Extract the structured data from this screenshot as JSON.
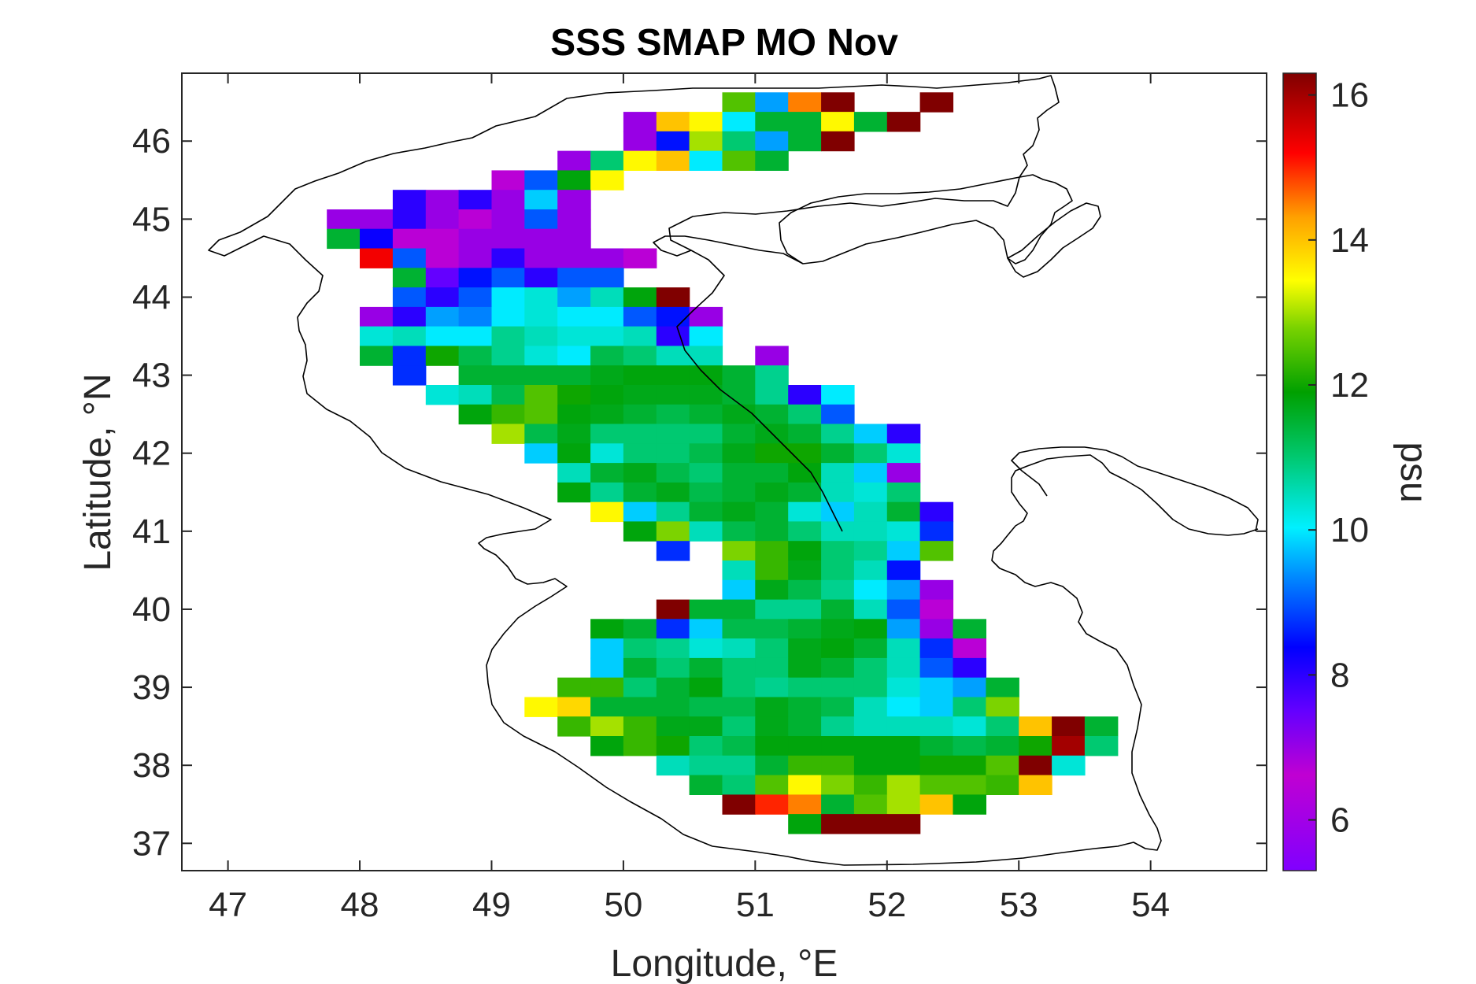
{
  "chart_data": {
    "type": "heatmap",
    "title": "SSS SMAP MO Nov",
    "xlabel": "Longitude, °E",
    "ylabel": "Latitude, °N",
    "colorbar_label": "psu",
    "xlim": [
      46.65,
      54.88
    ],
    "ylim": [
      36.65,
      46.87
    ],
    "xticks": [
      47,
      48,
      49,
      50,
      51,
      52,
      53,
      54
    ],
    "yticks": [
      37,
      38,
      39,
      40,
      41,
      42,
      43,
      44,
      45,
      46
    ],
    "clim": [
      5.3,
      16.3
    ],
    "cticks": [
      6,
      8,
      10,
      12,
      14,
      16
    ],
    "colormap": "hsv-jet",
    "cell_size_deg": [
      0.25,
      0.25
    ],
    "land_color": "#ffffff",
    "coastline_color": "#000000",
    "grid": false,
    "rows": [
      {
        "lat": 46.5,
        "lon_start": 50.875,
        "values": [
          12.5,
          9.5,
          14.5,
          16.3,
          null,
          null,
          16.3
        ]
      },
      {
        "lat": 46.25,
        "lon_start": 50.125,
        "values": [
          7.0,
          14.0,
          13.5,
          10.0,
          11.5,
          11.5,
          13.5,
          11.5,
          16.3
        ]
      },
      {
        "lat": 46.0,
        "lon_start": 50.125,
        "values": [
          7.0,
          8.5,
          13.0,
          11.0,
          9.5,
          11.5,
          16.3
        ]
      },
      {
        "lat": 45.75,
        "lon_start": 49.625,
        "values": [
          7.0,
          11.0,
          13.5,
          14.0,
          10.0,
          12.5,
          11.5
        ]
      },
      {
        "lat": 45.5,
        "lon_start": 49.125,
        "values": [
          6.5,
          9.0,
          11.8,
          13.5
        ]
      },
      {
        "lat": 45.25,
        "lon_start": 48.375,
        "values": [
          8.0,
          7.0,
          8.0,
          7.0,
          9.8,
          7.0
        ]
      },
      {
        "lat": 45.0,
        "lon_start": 47.875,
        "values": [
          7.0,
          7.0,
          8.0,
          7.0,
          6.5,
          7.0,
          9.0,
          7.0
        ]
      },
      {
        "lat": 44.75,
        "lon_start": 47.875,
        "values": [
          11.5,
          8.3,
          6.5,
          6.5,
          7.0,
          7.0,
          7.0,
          7.0
        ]
      },
      {
        "lat": 44.5,
        "lon_start": 48.125,
        "values": [
          15.3,
          9.0,
          6.5,
          7.0,
          8.0,
          7.0,
          7.0,
          7.0,
          6.5
        ]
      },
      {
        "lat": 44.25,
        "lon_start": 48.375,
        "values": [
          11.5,
          7.5,
          8.5,
          9.0,
          8.0,
          9.0,
          9.0
        ]
      },
      {
        "lat": 44.0,
        "lon_start": 48.375,
        "values": [
          9.0,
          8.0,
          9.0,
          10.0,
          10.3,
          9.5,
          10.5,
          11.8,
          16.3
        ]
      },
      {
        "lat": 43.75,
        "lon_start": 48.125,
        "values": [
          7.0,
          8.0,
          9.5,
          9.3,
          10.0,
          10.3,
          10.0,
          10.0,
          9.0,
          8.5,
          7.0
        ]
      },
      {
        "lat": 43.5,
        "lon_start": 48.125,
        "values": [
          10.3,
          10.5,
          10.0,
          10.0,
          10.8,
          10.5,
          10.3,
          10.3,
          10.5,
          8.0,
          10.0
        ]
      },
      {
        "lat": 43.25,
        "lon_start": 48.125,
        "values": [
          11.5,
          8.7,
          12.0,
          11.3,
          10.8,
          10.3,
          10.0,
          11.3,
          11.0,
          10.5,
          10.5,
          null,
          7.0
        ]
      },
      {
        "lat": 43.0,
        "lon_start": 48.375,
        "values": [
          8.7,
          null,
          11.5,
          11.5,
          11.5,
          11.5,
          11.7,
          11.8,
          11.8,
          11.8,
          11.5,
          10.8
        ]
      },
      {
        "lat": 42.75,
        "lon_start": 48.625,
        "values": [
          10.3,
          10.5,
          11.3,
          12.5,
          12.0,
          11.8,
          11.7,
          11.7,
          11.7,
          11.5,
          10.8,
          8.0,
          10.0
        ]
      },
      {
        "lat": 42.5,
        "lon_start": 48.875,
        "values": [
          11.8,
          12.3,
          12.5,
          11.8,
          11.7,
          11.5,
          11.3,
          11.5,
          11.7,
          11.5,
          11.0,
          9.0
        ]
      },
      {
        "lat": 42.25,
        "lon_start": 49.125,
        "values": [
          13.0,
          11.3,
          11.7,
          11.0,
          11.0,
          11.0,
          11.0,
          11.5,
          11.7,
          11.5,
          10.8,
          9.8,
          8.0
        ]
      },
      {
        "lat": 42.0,
        "lon_start": 49.375,
        "values": [
          9.8,
          11.8,
          10.3,
          11.0,
          11.0,
          11.3,
          11.7,
          12.0,
          12.0,
          11.5,
          11.0,
          10.3
        ]
      },
      {
        "lat": 41.75,
        "lon_start": 49.625,
        "values": [
          10.5,
          11.5,
          11.7,
          11.3,
          11.0,
          11.5,
          11.5,
          11.8,
          10.5,
          9.8,
          7.0
        ]
      },
      {
        "lat": 41.5,
        "lon_start": 49.625,
        "values": [
          11.8,
          10.8,
          11.5,
          11.7,
          11.3,
          11.5,
          11.7,
          11.5,
          10.5,
          10.3,
          11.0
        ]
      },
      {
        "lat": 41.25,
        "lon_start": 49.875,
        "values": [
          13.5,
          9.8,
          10.8,
          11.5,
          11.7,
          11.5,
          10.3,
          9.8,
          10.5,
          11.5,
          8.0
        ]
      },
      {
        "lat": 41.0,
        "lon_start": 50.125,
        "values": [
          11.8,
          12.8,
          10.5,
          11.3,
          11.5,
          11.0,
          10.5,
          10.5,
          10.3,
          8.7
        ]
      },
      {
        "lat": 40.75,
        "lon_start": 50.375,
        "values": [
          8.7,
          null,
          12.8,
          12.3,
          11.8,
          11.0,
          10.8,
          9.8,
          12.5
        ]
      },
      {
        "lat": 40.5,
        "lon_start": 50.875,
        "values": [
          10.5,
          12.3,
          11.7,
          11.0,
          10.5,
          8.5
        ]
      },
      {
        "lat": 40.25,
        "lon_start": 50.875,
        "values": [
          9.8,
          11.7,
          11.3,
          10.8,
          10.0,
          9.5,
          7.0
        ]
      },
      {
        "lat": 40.0,
        "lon_start": 50.375,
        "values": [
          16.3,
          11.5,
          11.5,
          10.8,
          10.8,
          11.5,
          10.5,
          9.0,
          6.5
        ]
      },
      {
        "lat": 39.75,
        "lon_start": 49.875,
        "values": [
          11.8,
          11.5,
          8.7,
          9.8,
          11.3,
          11.3,
          11.5,
          11.7,
          11.8,
          9.5,
          7.0,
          11.5
        ]
      },
      {
        "lat": 39.5,
        "lon_start": 49.875,
        "values": [
          9.8,
          11.0,
          10.8,
          10.3,
          10.5,
          11.0,
          11.7,
          11.8,
          11.5,
          10.5,
          8.7,
          6.5
        ]
      },
      {
        "lat": 39.25,
        "lon_start": 49.875,
        "values": [
          9.8,
          11.5,
          11.0,
          11.5,
          11.0,
          11.0,
          11.7,
          11.5,
          11.0,
          10.5,
          9.0,
          8.0
        ]
      },
      {
        "lat": 39.0,
        "lon_start": 49.625,
        "values": [
          12.3,
          12.3,
          11.0,
          11.5,
          11.8,
          11.0,
          10.8,
          11.0,
          11.0,
          11.0,
          10.3,
          9.8,
          9.5,
          11.5
        ]
      },
      {
        "lat": 38.75,
        "lon_start": 49.375,
        "values": [
          13.5,
          13.8,
          11.5,
          11.5,
          11.5,
          11.3,
          11.3,
          11.7,
          11.5,
          11.3,
          10.5,
          10.0,
          9.8,
          11.0,
          12.8
        ]
      },
      {
        "lat": 38.5,
        "lon_start": 49.625,
        "values": [
          12.3,
          13.0,
          12.3,
          11.7,
          11.7,
          11.0,
          11.7,
          11.5,
          10.8,
          10.5,
          10.5,
          10.5,
          10.3,
          11.0,
          14.0,
          16.3,
          11.5
        ]
      },
      {
        "lat": 38.25,
        "lon_start": 49.875,
        "values": [
          11.8,
          12.3,
          12.0,
          11.0,
          11.3,
          11.8,
          11.8,
          11.8,
          11.8,
          11.8,
          11.5,
          11.3,
          11.5,
          12.0,
          16.0,
          11.0
        ]
      },
      {
        "lat": 38.0,
        "lon_start": 50.375,
        "values": [
          10.5,
          10.8,
          10.8,
          11.5,
          12.3,
          12.3,
          11.8,
          11.8,
          12.0,
          12.0,
          12.5,
          16.3,
          10.3
        ]
      },
      {
        "lat": 37.75,
        "lon_start": 50.625,
        "values": [
          11.5,
          11.0,
          12.5,
          13.5,
          12.8,
          12.3,
          13.0,
          12.5,
          12.5,
          12.3,
          14.0
        ]
      },
      {
        "lat": 37.5,
        "lon_start": 50.875,
        "values": [
          16.3,
          15.0,
          14.5,
          11.5,
          12.5,
          13.0,
          14.0,
          11.8
        ]
      },
      {
        "lat": 37.25,
        "lon_start": 51.375,
        "values": [
          11.8,
          16.3,
          16.3,
          16.3
        ]
      }
    ]
  }
}
